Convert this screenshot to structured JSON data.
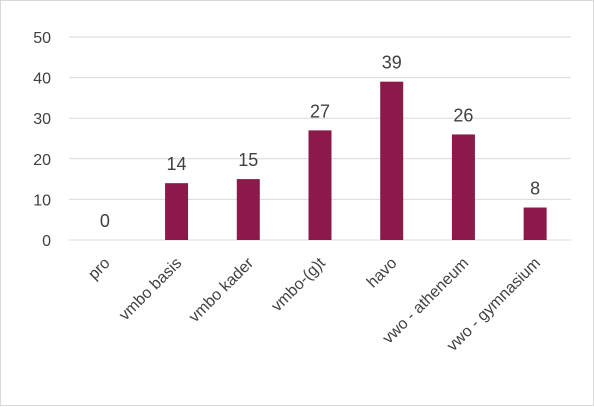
{
  "chart_data": {
    "type": "bar",
    "categories": [
      "pro",
      "vmbo basis",
      "vmbo kader",
      "vmbo-(g)t",
      "havo",
      "vwo - atheneum",
      "vwo - gymnasium"
    ],
    "values": [
      0,
      14,
      15,
      27,
      39,
      26,
      8
    ],
    "data_labels": [
      "0",
      "14",
      "15",
      "27",
      "39",
      "26",
      "8"
    ],
    "y_ticks": [
      0,
      10,
      20,
      30,
      40,
      50
    ],
    "y_tick_labels": [
      "0",
      "10",
      "20",
      "30",
      "40",
      "50"
    ],
    "ylim": [
      0,
      50
    ],
    "grid": true,
    "legend": "none",
    "bar_color": "#8B1A4A",
    "grid_color": "#d9d9d9"
  }
}
